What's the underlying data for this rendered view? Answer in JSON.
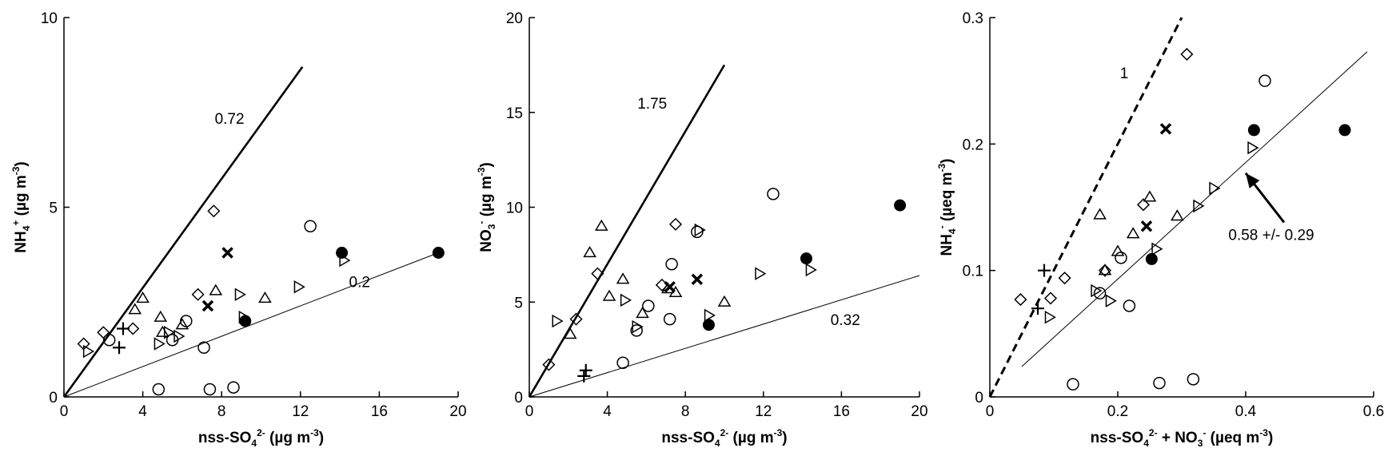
{
  "chart_data": [
    {
      "type": "scatter",
      "xlabel": {
        "main": "nss-SO",
        "sub": "4",
        "sup": "2-",
        "unit": " (µg m",
        "unit_sup": "-3",
        "close": ")"
      },
      "ylabel": {
        "main": "NH",
        "sub": "4",
        "sup": "+",
        "unit": " (µg m",
        "unit_sup": "-3",
        "close": ")"
      },
      "xlim": [
        0,
        20
      ],
      "ylim": [
        0,
        10
      ],
      "xticks": [
        0,
        4,
        8,
        12,
        16,
        20
      ],
      "yticks": [
        0,
        5,
        10
      ],
      "lines": [
        {
          "label": "0.72",
          "x": [
            0,
            12.1
          ],
          "y": [
            0,
            8.7
          ],
          "style": "thick"
        },
        {
          "label": "0.2",
          "x": [
            0,
            19
          ],
          "y": [
            0,
            3.8
          ],
          "style": "thin"
        }
      ],
      "annotations": [
        {
          "text": "0.72",
          "x": 8.4,
          "y": 7.2
        },
        {
          "text": "0.2",
          "x": 15.0,
          "y": 2.9
        }
      ],
      "series": [
        {
          "marker": "diamond",
          "points": [
            [
              1.0,
              1.4
            ],
            [
              2.0,
              1.7
            ],
            [
              3.5,
              1.8
            ],
            [
              6.8,
              2.7
            ],
            [
              7.6,
              4.9
            ]
          ]
        },
        {
          "marker": "triangle-up",
          "points": [
            [
              3.6,
              2.3
            ],
            [
              4.0,
              2.6
            ],
            [
              4.9,
              2.1
            ],
            [
              5.0,
              1.7
            ],
            [
              6.0,
              1.9
            ],
            [
              7.7,
              2.8
            ],
            [
              10.2,
              2.6
            ]
          ]
        },
        {
          "marker": "triangle-right",
          "points": [
            [
              1.2,
              1.2
            ],
            [
              4.8,
              1.4
            ],
            [
              5.3,
              1.7
            ],
            [
              5.8,
              1.6
            ],
            [
              8.9,
              2.7
            ],
            [
              9.1,
              2.1
            ],
            [
              11.9,
              2.9
            ],
            [
              14.2,
              3.6
            ]
          ]
        },
        {
          "marker": "circle-open",
          "points": [
            [
              2.3,
              1.5
            ],
            [
              5.5,
              1.5
            ],
            [
              6.2,
              2.0
            ],
            [
              7.1,
              1.3
            ],
            [
              4.8,
              0.2
            ],
            [
              7.4,
              0.2
            ],
            [
              8.6,
              0.25
            ],
            [
              12.5,
              4.5
            ]
          ]
        },
        {
          "marker": "circle-filled",
          "points": [
            [
              9.2,
              2.0
            ],
            [
              14.1,
              3.8
            ],
            [
              19.0,
              3.8
            ]
          ]
        },
        {
          "marker": "x",
          "points": [
            [
              7.3,
              2.4
            ],
            [
              8.3,
              3.8
            ]
          ]
        },
        {
          "marker": "plus",
          "points": [
            [
              2.8,
              1.3
            ],
            [
              3.0,
              1.8
            ]
          ]
        }
      ]
    },
    {
      "type": "scatter",
      "xlabel": {
        "main": "nss-SO",
        "sub": "4",
        "sup": "2-",
        "unit": " (µg m",
        "unit_sup": "-3",
        "close": ")"
      },
      "ylabel": {
        "main": "NO",
        "sub": "3",
        "sup": "-",
        "unit": " (µg m",
        "unit_sup": "-3",
        "close": ")"
      },
      "xlim": [
        0,
        20
      ],
      "ylim": [
        0,
        20
      ],
      "xticks": [
        0,
        4,
        8,
        12,
        16,
        20
      ],
      "yticks": [
        0,
        5,
        10,
        15,
        20
      ],
      "lines": [
        {
          "label": "1.75",
          "x": [
            0,
            10.0
          ],
          "y": [
            0,
            17.5
          ],
          "style": "thick"
        },
        {
          "label": "0.32",
          "x": [
            0,
            20
          ],
          "y": [
            0,
            6.4
          ],
          "style": "thin"
        }
      ],
      "annotations": [
        {
          "text": "1.75",
          "x": 6.3,
          "y": 15.2
        },
        {
          "text": "0.32",
          "x": 16.2,
          "y": 3.8
        }
      ],
      "series": [
        {
          "marker": "diamond",
          "points": [
            [
              1.0,
              1.7
            ],
            [
              2.4,
              4.1
            ],
            [
              3.5,
              6.5
            ],
            [
              6.8,
              5.9
            ],
            [
              7.5,
              9.1
            ]
          ]
        },
        {
          "marker": "triangle-up",
          "points": [
            [
              2.1,
              3.3
            ],
            [
              3.1,
              7.6
            ],
            [
              3.7,
              9.0
            ],
            [
              4.1,
              5.3
            ],
            [
              4.8,
              6.2
            ],
            [
              5.8,
              4.4
            ],
            [
              7.1,
              5.7
            ],
            [
              7.5,
              5.5
            ],
            [
              10.0,
              5.0
            ]
          ]
        },
        {
          "marker": "triangle-right",
          "points": [
            [
              1.4,
              4.0
            ],
            [
              4.9,
              5.1
            ],
            [
              5.5,
              3.7
            ],
            [
              8.7,
              8.8
            ],
            [
              9.2,
              4.3
            ],
            [
              11.8,
              6.5
            ],
            [
              14.4,
              6.7
            ]
          ]
        },
        {
          "marker": "circle-open",
          "points": [
            [
              4.8,
              1.8
            ],
            [
              5.5,
              3.5
            ],
            [
              6.1,
              4.8
            ],
            [
              7.2,
              4.1
            ],
            [
              7.3,
              7.0
            ],
            [
              8.6,
              8.7
            ],
            [
              12.5,
              10.7
            ]
          ]
        },
        {
          "marker": "circle-filled",
          "points": [
            [
              9.2,
              3.8
            ],
            [
              14.2,
              7.3
            ],
            [
              19.0,
              10.1
            ]
          ]
        },
        {
          "marker": "x",
          "points": [
            [
              7.2,
              5.8
            ],
            [
              8.6,
              6.2
            ]
          ]
        },
        {
          "marker": "plus",
          "points": [
            [
              2.8,
              1.1
            ],
            [
              2.9,
              1.4
            ]
          ]
        }
      ]
    },
    {
      "type": "scatter",
      "xlabel": {
        "main": "nss-SO",
        "sub": "4",
        "sup": "2-",
        "unit": " + NO",
        "unit_sub": "3",
        "unit_sup": "-",
        "unit2": " (µeq m",
        "unit2_sup": "-3",
        "close": ")"
      },
      "ylabel": {
        "main": "NH",
        "sub": "4",
        "sup": "-",
        "unit": " (µeq m",
        "unit_sup": "-3",
        "close": ")"
      },
      "xlim": [
        0,
        0.6
      ],
      "ylim": [
        0,
        0.3
      ],
      "xticks": [
        0,
        0.2,
        0.4,
        0.6
      ],
      "xtick_labels": [
        "0",
        "0.2",
        "0.4",
        "0.6"
      ],
      "yticks": [
        0,
        0.1,
        0.2,
        0.3
      ],
      "ytick_labels": [
        "0",
        "0.1",
        "0.2",
        "0.3"
      ],
      "lines": [
        {
          "label": "1",
          "x": [
            0,
            0.3
          ],
          "y": [
            0,
            0.3
          ],
          "style": "dashed"
        },
        {
          "label": "0.58 +/- 0.29",
          "x": [
            0.05,
            0.59
          ],
          "y": [
            0.024,
            0.273
          ],
          "style": "thin"
        }
      ],
      "annotations": [
        {
          "text": "1",
          "x": 0.21,
          "y": 0.252
        },
        {
          "text": "0.58 +/- 0.29",
          "x": 0.44,
          "y": 0.124
        }
      ],
      "arrow": {
        "from": [
          0.46,
          0.138
        ],
        "to": [
          0.4,
          0.177
        ]
      },
      "series": [
        {
          "marker": "diamond",
          "points": [
            [
              0.048,
              0.077
            ],
            [
              0.095,
              0.078
            ],
            [
              0.117,
              0.094
            ],
            [
              0.18,
              0.1
            ],
            [
              0.24,
              0.152
            ],
            [
              0.308,
              0.271
            ]
          ]
        },
        {
          "marker": "triangle-up",
          "points": [
            [
              0.172,
              0.144
            ],
            [
              0.18,
              0.1
            ],
            [
              0.2,
              0.115
            ],
            [
              0.224,
              0.129
            ],
            [
              0.25,
              0.158
            ],
            [
              0.293,
              0.143
            ]
          ]
        },
        {
          "marker": "triangle-right",
          "points": [
            [
              0.093,
              0.063
            ],
            [
              0.165,
              0.084
            ],
            [
              0.188,
              0.076
            ],
            [
              0.26,
              0.117
            ],
            [
              0.325,
              0.151
            ],
            [
              0.35,
              0.165
            ],
            [
              0.41,
              0.197
            ]
          ]
        },
        {
          "marker": "circle-open",
          "points": [
            [
              0.13,
              0.01
            ],
            [
              0.172,
              0.082
            ],
            [
              0.205,
              0.11
            ],
            [
              0.218,
              0.072
            ],
            [
              0.265,
              0.011
            ],
            [
              0.318,
              0.014
            ],
            [
              0.43,
              0.25
            ]
          ]
        },
        {
          "marker": "circle-filled",
          "points": [
            [
              0.253,
              0.109
            ],
            [
              0.413,
              0.211
            ],
            [
              0.555,
              0.211
            ]
          ]
        },
        {
          "marker": "x",
          "points": [
            [
              0.245,
              0.135
            ],
            [
              0.275,
              0.212
            ]
          ]
        },
        {
          "marker": "plus",
          "points": [
            [
              0.075,
              0.07
            ],
            [
              0.085,
              0.1
            ]
          ]
        }
      ]
    }
  ]
}
